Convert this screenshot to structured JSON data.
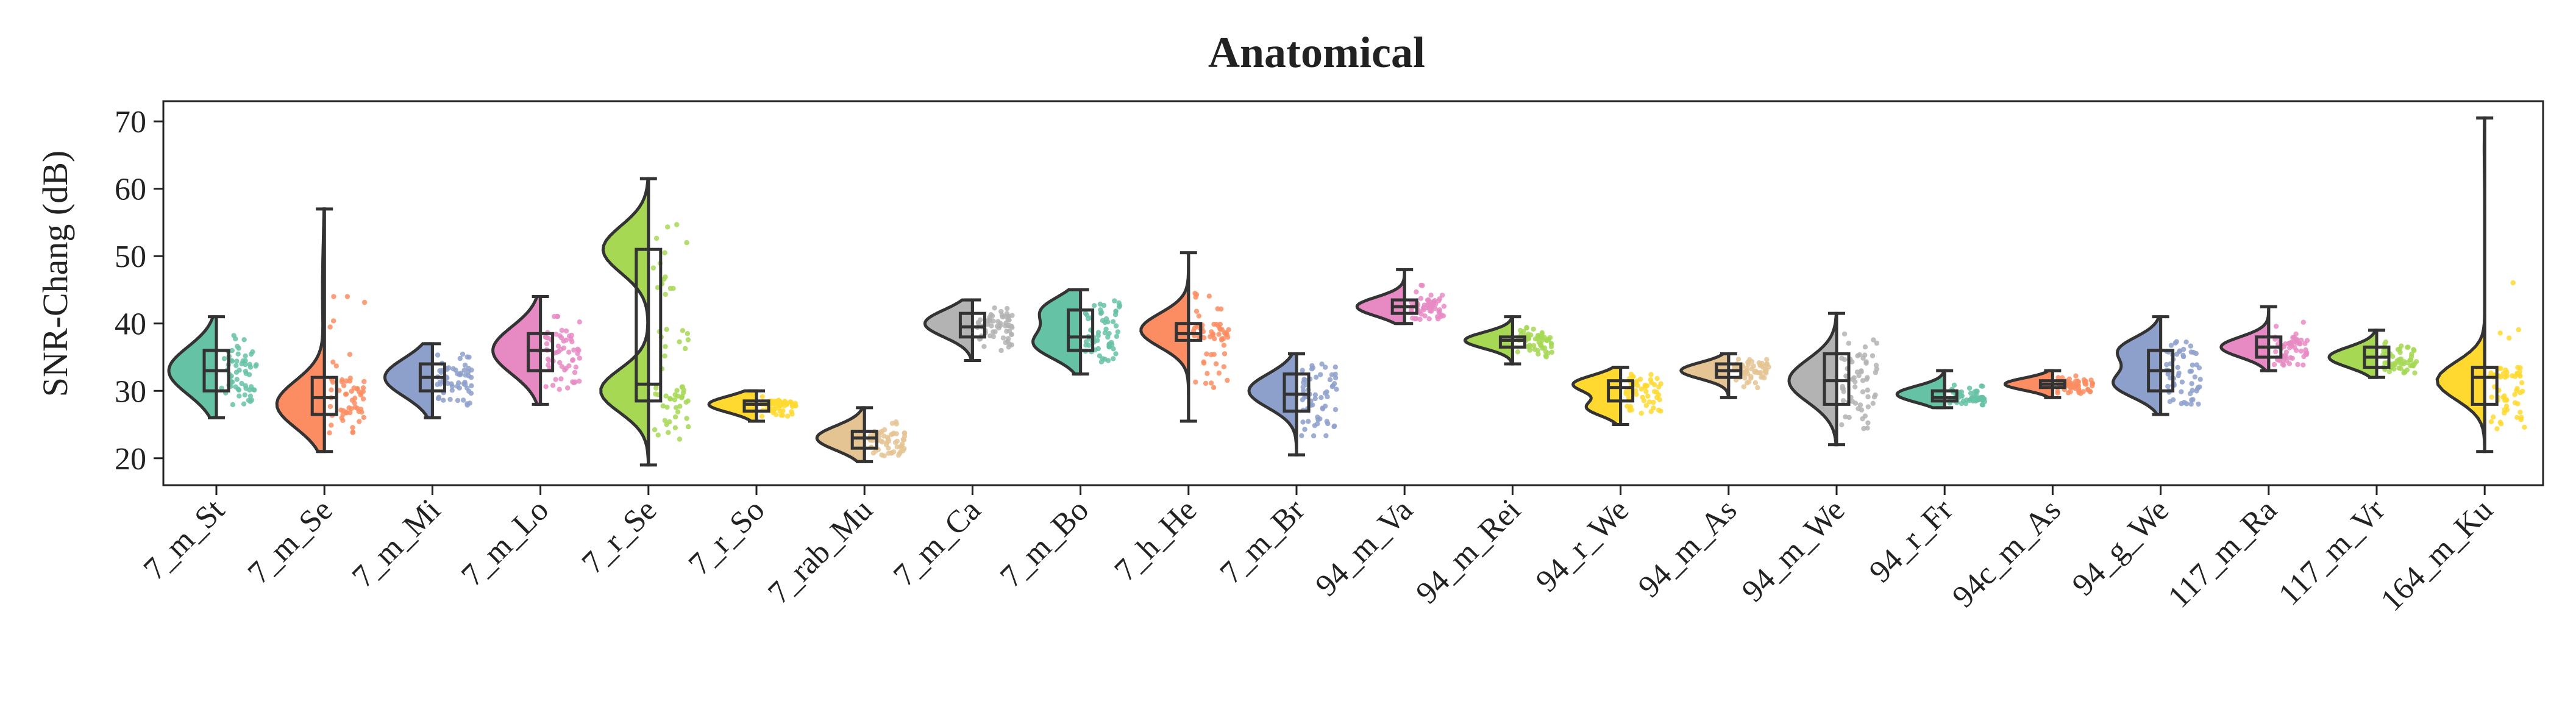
{
  "chart_data": {
    "type": "violin",
    "title": "Anatomical",
    "xlabel": "",
    "ylabel": "SNR-Chang (dB)",
    "ylim": [
      16,
      73
    ],
    "yticks": [
      20,
      30,
      40,
      50,
      60,
      70
    ],
    "grid": false,
    "categories": [
      "7_m_St",
      "7_m_Se",
      "7_m_Mi",
      "7_m_Lo",
      "7_r_Se",
      "7_r_So",
      "7_rab_Mu",
      "7_m_Ca",
      "7_m_Bo",
      "7_h_He",
      "7_m_Br",
      "94_m_Va",
      "94_m_Rei",
      "94_r_We",
      "94_m_As",
      "94_m_We",
      "94_r_Fr",
      "94c_m_As",
      "94_g_We",
      "117_m_Ra",
      "117_m_Vr",
      "164_m_Ku"
    ],
    "colors": [
      "#66c2a5",
      "#fc8d62",
      "#8da0cb",
      "#e78ac3",
      "#a6d854",
      "#ffd92f",
      "#e5c494",
      "#b3b3b3",
      "#66c2a5",
      "#fc8d62",
      "#8da0cb",
      "#e78ac3",
      "#a6d854",
      "#ffd92f",
      "#e5c494",
      "#b3b3b3",
      "#66c2a5",
      "#fc8d62",
      "#8da0cb",
      "#e78ac3",
      "#a6d854",
      "#ffd92f"
    ],
    "distributions": [
      {
        "min": 26,
        "q1": 30,
        "median": 33,
        "q3": 36,
        "max": 41,
        "modes": [
          [
            33,
            3.5,
            1.0
          ]
        ]
      },
      {
        "min": 21,
        "q1": 26.5,
        "median": 29,
        "q3": 32,
        "max": 57,
        "modes": [
          [
            28,
            3.5,
            1.0
          ],
          [
            45,
            7,
            0.04
          ]
        ]
      },
      {
        "min": 26,
        "q1": 30,
        "median": 32,
        "q3": 34,
        "max": 37,
        "modes": [
          [
            32,
            2.8,
            1.0
          ]
        ]
      },
      {
        "min": 28,
        "q1": 33,
        "median": 36,
        "q3": 38.5,
        "max": 44,
        "modes": [
          [
            36,
            3.5,
            1.0
          ]
        ]
      },
      {
        "min": 19,
        "q1": 28.5,
        "median": 31,
        "q3": 51,
        "max": 61.5,
        "modes": [
          [
            30,
            3.2,
            1.0
          ],
          [
            51,
            3.5,
            0.95
          ]
        ]
      },
      {
        "min": 25.5,
        "q1": 27,
        "median": 28,
        "q3": 28.5,
        "max": 30,
        "modes": [
          [
            28,
            1.2,
            1.0
          ]
        ]
      },
      {
        "min": 19.5,
        "q1": 21.5,
        "median": 23,
        "q3": 24,
        "max": 27.5,
        "modes": [
          [
            23,
            1.8,
            1.0
          ]
        ]
      },
      {
        "min": 34.5,
        "q1": 38,
        "median": 39.5,
        "q3": 41.5,
        "max": 43.5,
        "modes": [
          [
            40,
            2.0,
            1.0
          ]
        ]
      },
      {
        "min": 32.5,
        "q1": 36,
        "median": 38,
        "q3": 42,
        "max": 45,
        "modes": [
          [
            37,
            2.2,
            1.0
          ],
          [
            42,
            2.0,
            0.8
          ]
        ]
      },
      {
        "min": 25.5,
        "q1": 37.5,
        "median": 38.5,
        "q3": 40,
        "max": 50.5,
        "modes": [
          [
            39,
            2.5,
            1.0
          ]
        ]
      },
      {
        "min": 20.5,
        "q1": 27,
        "median": 29.5,
        "q3": 32.5,
        "max": 35.5,
        "modes": [
          [
            30,
            2.5,
            1.0
          ]
        ]
      },
      {
        "min": 40,
        "q1": 41.5,
        "median": 42.5,
        "q3": 43.5,
        "max": 48,
        "modes": [
          [
            42.5,
            1.4,
            1.0
          ]
        ]
      },
      {
        "min": 34,
        "q1": 36.5,
        "median": 37.5,
        "q3": 38,
        "max": 41,
        "modes": [
          [
            37.5,
            1.2,
            1.0
          ]
        ]
      },
      {
        "min": 25,
        "q1": 28.5,
        "median": 30.5,
        "q3": 31.5,
        "max": 33.5,
        "modes": [
          [
            31,
            1.3,
            1.0
          ],
          [
            27.5,
            1.2,
            0.7
          ]
        ]
      },
      {
        "min": 29,
        "q1": 32,
        "median": 33,
        "q3": 34,
        "max": 35.5,
        "modes": [
          [
            33,
            1.2,
            1.0
          ]
        ]
      },
      {
        "min": 22,
        "q1": 28,
        "median": 31.5,
        "q3": 35.5,
        "max": 41.5,
        "modes": [
          [
            31.5,
            3.2,
            1.0
          ]
        ]
      },
      {
        "min": 27.5,
        "q1": 28.5,
        "median": 29,
        "q3": 30,
        "max": 33,
        "modes": [
          [
            29.5,
            1.2,
            1.0
          ]
        ]
      },
      {
        "min": 29,
        "q1": 30.5,
        "median": 31,
        "q3": 31.5,
        "max": 33,
        "modes": [
          [
            31,
            0.9,
            1.0
          ]
        ]
      },
      {
        "min": 26.5,
        "q1": 30,
        "median": 33,
        "q3": 36,
        "max": 41,
        "modes": [
          [
            31,
            2.0,
            1.0
          ],
          [
            36,
            2.0,
            0.9
          ]
        ]
      },
      {
        "min": 33,
        "q1": 35,
        "median": 36.5,
        "q3": 38,
        "max": 42.5,
        "modes": [
          [
            36.5,
            1.5,
            1.0
          ]
        ]
      },
      {
        "min": 32,
        "q1": 33.5,
        "median": 35,
        "q3": 36.5,
        "max": 39,
        "modes": [
          [
            35,
            1.5,
            1.0
          ]
        ]
      },
      {
        "min": 21,
        "q1": 28,
        "median": 32,
        "q3": 33.5,
        "max": 70.5,
        "modes": [
          [
            31.5,
            2.8,
            1.0
          ],
          [
            66,
            4,
            0.01
          ]
        ]
      }
    ]
  }
}
